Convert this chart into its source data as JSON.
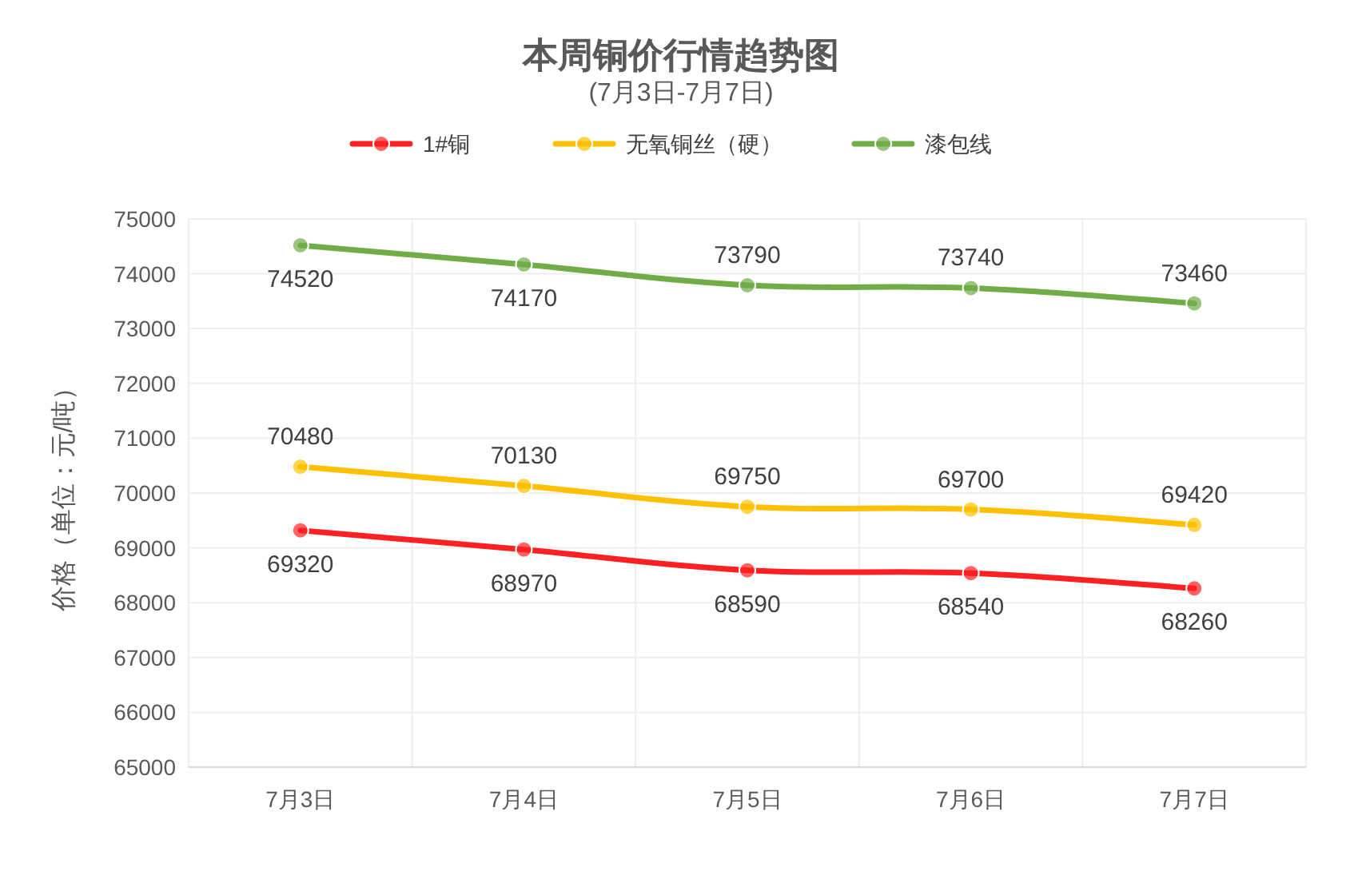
{
  "chart_data": {
    "type": "line",
    "title": "本周铜价行情趋势图",
    "subtitle": "(7月3日-7月7日)",
    "ylabel": "价格（单位：元/吨）",
    "categories": [
      "7月3日",
      "7月4日",
      "7月5日",
      "7月6日",
      "7月7日"
    ],
    "series": [
      {
        "name": "1#铜",
        "color": "#ff2121",
        "values": [
          69320,
          68970,
          68590,
          68540,
          68260
        ]
      },
      {
        "name": "无氧铜丝（硬）",
        "color": "#ffc000",
        "values": [
          70480,
          70130,
          69750,
          69700,
          69420
        ]
      },
      {
        "name": "漆包线",
        "color": "#70ad47",
        "values": [
          74520,
          74170,
          73790,
          73740,
          73460
        ]
      }
    ],
    "ylim": [
      65000,
      75000
    ],
    "yticks": [
      65000,
      66000,
      67000,
      68000,
      69000,
      70000,
      71000,
      72000,
      73000,
      74000,
      75000
    ],
    "grid": true,
    "legend": "top",
    "marker": "circle",
    "line_style": "solid",
    "data_labels": true
  }
}
